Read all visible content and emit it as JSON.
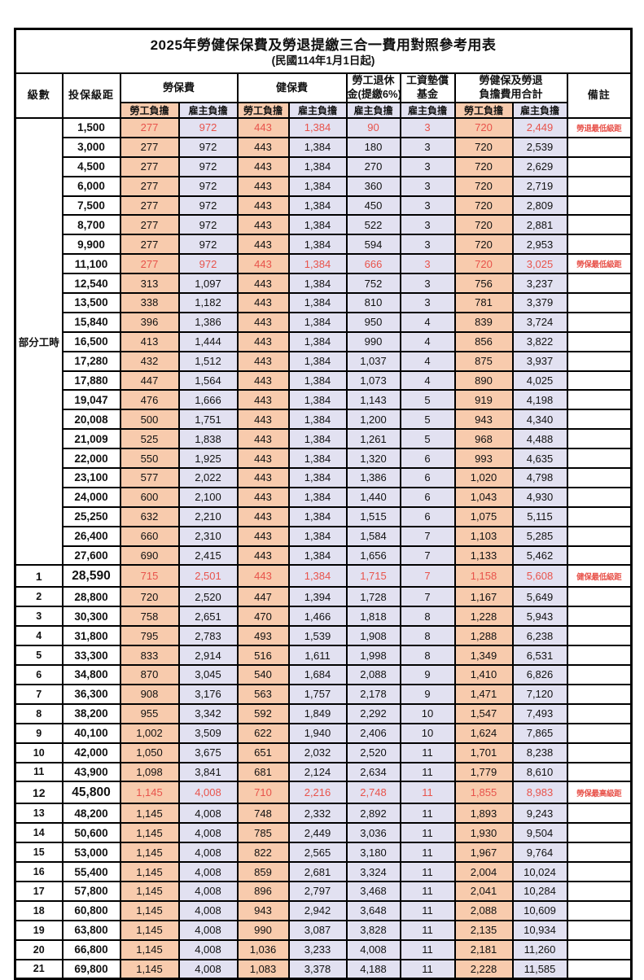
{
  "title": "2025年勞健保保費及勞退提繳三合一費用對照參考用表",
  "subtitle": "(民國114年1月1日起)",
  "colors": {
    "employee_bg": "#F8CBAD",
    "employer_bg": "#E2E1F1",
    "red": "#E8534B"
  },
  "header": {
    "level": "級數",
    "bracket": "投保級距",
    "labor_group": "勞保費",
    "health_group": "健保費",
    "pension_line1": "勞工退休",
    "pension_line2": "金(提繳6%)",
    "fund_line1": "工資墊償",
    "fund_line2": "基金",
    "total_line1": "勞健保及勞退",
    "total_line2": "負擔費用合計",
    "employee": "勞工負擔",
    "employer": "雇主負擔",
    "remark": "備註"
  },
  "part_time_label": "部分工時",
  "part_time_rowspan": 23,
  "rows": [
    {
      "level": "",
      "bracket": "1,500",
      "labor_emp": "277",
      "labor_er": "972",
      "health_emp": "443",
      "health_er": "1,384",
      "pension_er": "90",
      "fund_er": "3",
      "total_emp": "720",
      "total_er": "2,449",
      "remark": "勞退最低級距",
      "red": true,
      "emph": false
    },
    {
      "level": "",
      "bracket": "3,000",
      "labor_emp": "277",
      "labor_er": "972",
      "health_emp": "443",
      "health_er": "1,384",
      "pension_er": "180",
      "fund_er": "3",
      "total_emp": "720",
      "total_er": "2,539",
      "remark": "",
      "red": false,
      "emph": false
    },
    {
      "level": "",
      "bracket": "4,500",
      "labor_emp": "277",
      "labor_er": "972",
      "health_emp": "443",
      "health_er": "1,384",
      "pension_er": "270",
      "fund_er": "3",
      "total_emp": "720",
      "total_er": "2,629",
      "remark": "",
      "red": false,
      "emph": false
    },
    {
      "level": "",
      "bracket": "6,000",
      "labor_emp": "277",
      "labor_er": "972",
      "health_emp": "443",
      "health_er": "1,384",
      "pension_er": "360",
      "fund_er": "3",
      "total_emp": "720",
      "total_er": "2,719",
      "remark": "",
      "red": false,
      "emph": false
    },
    {
      "level": "",
      "bracket": "7,500",
      "labor_emp": "277",
      "labor_er": "972",
      "health_emp": "443",
      "health_er": "1,384",
      "pension_er": "450",
      "fund_er": "3",
      "total_emp": "720",
      "total_er": "2,809",
      "remark": "",
      "red": false,
      "emph": false
    },
    {
      "level": "",
      "bracket": "8,700",
      "labor_emp": "277",
      "labor_er": "972",
      "health_emp": "443",
      "health_er": "1,384",
      "pension_er": "522",
      "fund_er": "3",
      "total_emp": "720",
      "total_er": "2,881",
      "remark": "",
      "red": false,
      "emph": false
    },
    {
      "level": "",
      "bracket": "9,900",
      "labor_emp": "277",
      "labor_er": "972",
      "health_emp": "443",
      "health_er": "1,384",
      "pension_er": "594",
      "fund_er": "3",
      "total_emp": "720",
      "total_er": "2,953",
      "remark": "",
      "red": false,
      "emph": false
    },
    {
      "level": "",
      "bracket": "11,100",
      "labor_emp": "277",
      "labor_er": "972",
      "health_emp": "443",
      "health_er": "1,384",
      "pension_er": "666",
      "fund_er": "3",
      "total_emp": "720",
      "total_er": "3,025",
      "remark": "勞保最低級距",
      "red": true,
      "emph": false
    },
    {
      "level": "",
      "bracket": "12,540",
      "labor_emp": "313",
      "labor_er": "1,097",
      "health_emp": "443",
      "health_er": "1,384",
      "pension_er": "752",
      "fund_er": "3",
      "total_emp": "756",
      "total_er": "3,237",
      "remark": "",
      "red": false,
      "emph": false
    },
    {
      "level": "",
      "bracket": "13,500",
      "labor_emp": "338",
      "labor_er": "1,182",
      "health_emp": "443",
      "health_er": "1,384",
      "pension_er": "810",
      "fund_er": "3",
      "total_emp": "781",
      "total_er": "3,379",
      "remark": "",
      "red": false,
      "emph": false
    },
    {
      "level": "",
      "bracket": "15,840",
      "labor_emp": "396",
      "labor_er": "1,386",
      "health_emp": "443",
      "health_er": "1,384",
      "pension_er": "950",
      "fund_er": "4",
      "total_emp": "839",
      "total_er": "3,724",
      "remark": "",
      "red": false,
      "emph": false
    },
    {
      "level": "",
      "bracket": "16,500",
      "labor_emp": "413",
      "labor_er": "1,444",
      "health_emp": "443",
      "health_er": "1,384",
      "pension_er": "990",
      "fund_er": "4",
      "total_emp": "856",
      "total_er": "3,822",
      "remark": "",
      "red": false,
      "emph": false
    },
    {
      "level": "",
      "bracket": "17,280",
      "labor_emp": "432",
      "labor_er": "1,512",
      "health_emp": "443",
      "health_er": "1,384",
      "pension_er": "1,037",
      "fund_er": "4",
      "total_emp": "875",
      "total_er": "3,937",
      "remark": "",
      "red": false,
      "emph": false
    },
    {
      "level": "",
      "bracket": "17,880",
      "labor_emp": "447",
      "labor_er": "1,564",
      "health_emp": "443",
      "health_er": "1,384",
      "pension_er": "1,073",
      "fund_er": "4",
      "total_emp": "890",
      "total_er": "4,025",
      "remark": "",
      "red": false,
      "emph": false
    },
    {
      "level": "",
      "bracket": "19,047",
      "labor_emp": "476",
      "labor_er": "1,666",
      "health_emp": "443",
      "health_er": "1,384",
      "pension_er": "1,143",
      "fund_er": "5",
      "total_emp": "919",
      "total_er": "4,198",
      "remark": "",
      "red": false,
      "emph": false
    },
    {
      "level": "",
      "bracket": "20,008",
      "labor_emp": "500",
      "labor_er": "1,751",
      "health_emp": "443",
      "health_er": "1,384",
      "pension_er": "1,200",
      "fund_er": "5",
      "total_emp": "943",
      "total_er": "4,340",
      "remark": "",
      "red": false,
      "emph": false
    },
    {
      "level": "",
      "bracket": "21,009",
      "labor_emp": "525",
      "labor_er": "1,838",
      "health_emp": "443",
      "health_er": "1,384",
      "pension_er": "1,261",
      "fund_er": "5",
      "total_emp": "968",
      "total_er": "4,488",
      "remark": "",
      "red": false,
      "emph": false
    },
    {
      "level": "",
      "bracket": "22,000",
      "labor_emp": "550",
      "labor_er": "1,925",
      "health_emp": "443",
      "health_er": "1,384",
      "pension_er": "1,320",
      "fund_er": "6",
      "total_emp": "993",
      "total_er": "4,635",
      "remark": "",
      "red": false,
      "emph": false
    },
    {
      "level": "",
      "bracket": "23,100",
      "labor_emp": "577",
      "labor_er": "2,022",
      "health_emp": "443",
      "health_er": "1,384",
      "pension_er": "1,386",
      "fund_er": "6",
      "total_emp": "1,020",
      "total_er": "4,798",
      "remark": "",
      "red": false,
      "emph": false
    },
    {
      "level": "",
      "bracket": "24,000",
      "labor_emp": "600",
      "labor_er": "2,100",
      "health_emp": "443",
      "health_er": "1,384",
      "pension_er": "1,440",
      "fund_er": "6",
      "total_emp": "1,043",
      "total_er": "4,930",
      "remark": "",
      "red": false,
      "emph": false
    },
    {
      "level": "",
      "bracket": "25,250",
      "labor_emp": "632",
      "labor_er": "2,210",
      "health_emp": "443",
      "health_er": "1,384",
      "pension_er": "1,515",
      "fund_er": "6",
      "total_emp": "1,075",
      "total_er": "5,115",
      "remark": "",
      "red": false,
      "emph": false
    },
    {
      "level": "",
      "bracket": "26,400",
      "labor_emp": "660",
      "labor_er": "2,310",
      "health_emp": "443",
      "health_er": "1,384",
      "pension_er": "1,584",
      "fund_er": "7",
      "total_emp": "1,103",
      "total_er": "5,285",
      "remark": "",
      "red": false,
      "emph": false
    },
    {
      "level": "",
      "bracket": "27,600",
      "labor_emp": "690",
      "labor_er": "2,415",
      "health_emp": "443",
      "health_er": "1,384",
      "pension_er": "1,656",
      "fund_er": "7",
      "total_emp": "1,133",
      "total_er": "5,462",
      "remark": "",
      "red": false,
      "emph": false
    },
    {
      "level": "1",
      "bracket": "28,590",
      "labor_emp": "715",
      "labor_er": "2,501",
      "health_emp": "443",
      "health_er": "1,384",
      "pension_er": "1,715",
      "fund_er": "7",
      "total_emp": "1,158",
      "total_er": "5,608",
      "remark": "健保最低級距",
      "red": true,
      "emph": true
    },
    {
      "level": "2",
      "bracket": "28,800",
      "labor_emp": "720",
      "labor_er": "2,520",
      "health_emp": "447",
      "health_er": "1,394",
      "pension_er": "1,728",
      "fund_er": "7",
      "total_emp": "1,167",
      "total_er": "5,649",
      "remark": "",
      "red": false,
      "emph": false
    },
    {
      "level": "3",
      "bracket": "30,300",
      "labor_emp": "758",
      "labor_er": "2,651",
      "health_emp": "470",
      "health_er": "1,466",
      "pension_er": "1,818",
      "fund_er": "8",
      "total_emp": "1,228",
      "total_er": "5,943",
      "remark": "",
      "red": false,
      "emph": false
    },
    {
      "level": "4",
      "bracket": "31,800",
      "labor_emp": "795",
      "labor_er": "2,783",
      "health_emp": "493",
      "health_er": "1,539",
      "pension_er": "1,908",
      "fund_er": "8",
      "total_emp": "1,288",
      "total_er": "6,238",
      "remark": "",
      "red": false,
      "emph": false
    },
    {
      "level": "5",
      "bracket": "33,300",
      "labor_emp": "833",
      "labor_er": "2,914",
      "health_emp": "516",
      "health_er": "1,611",
      "pension_er": "1,998",
      "fund_er": "8",
      "total_emp": "1,349",
      "total_er": "6,531",
      "remark": "",
      "red": false,
      "emph": false
    },
    {
      "level": "6",
      "bracket": "34,800",
      "labor_emp": "870",
      "labor_er": "3,045",
      "health_emp": "540",
      "health_er": "1,684",
      "pension_er": "2,088",
      "fund_er": "9",
      "total_emp": "1,410",
      "total_er": "6,826",
      "remark": "",
      "red": false,
      "emph": false
    },
    {
      "level": "7",
      "bracket": "36,300",
      "labor_emp": "908",
      "labor_er": "3,176",
      "health_emp": "563",
      "health_er": "1,757",
      "pension_er": "2,178",
      "fund_er": "9",
      "total_emp": "1,471",
      "total_er": "7,120",
      "remark": "",
      "red": false,
      "emph": false
    },
    {
      "level": "8",
      "bracket": "38,200",
      "labor_emp": "955",
      "labor_er": "3,342",
      "health_emp": "592",
      "health_er": "1,849",
      "pension_er": "2,292",
      "fund_er": "10",
      "total_emp": "1,547",
      "total_er": "7,493",
      "remark": "",
      "red": false,
      "emph": false
    },
    {
      "level": "9",
      "bracket": "40,100",
      "labor_emp": "1,002",
      "labor_er": "3,509",
      "health_emp": "622",
      "health_er": "1,940",
      "pension_er": "2,406",
      "fund_er": "10",
      "total_emp": "1,624",
      "total_er": "7,865",
      "remark": "",
      "red": false,
      "emph": false
    },
    {
      "level": "10",
      "bracket": "42,000",
      "labor_emp": "1,050",
      "labor_er": "3,675",
      "health_emp": "651",
      "health_er": "2,032",
      "pension_er": "2,520",
      "fund_er": "11",
      "total_emp": "1,701",
      "total_er": "8,238",
      "remark": "",
      "red": false,
      "emph": false
    },
    {
      "level": "11",
      "bracket": "43,900",
      "labor_emp": "1,098",
      "labor_er": "3,841",
      "health_emp": "681",
      "health_er": "2,124",
      "pension_er": "2,634",
      "fund_er": "11",
      "total_emp": "1,779",
      "total_er": "8,610",
      "remark": "",
      "red": false,
      "emph": false
    },
    {
      "level": "12",
      "bracket": "45,800",
      "labor_emp": "1,145",
      "labor_er": "4,008",
      "health_emp": "710",
      "health_er": "2,216",
      "pension_er": "2,748",
      "fund_er": "11",
      "total_emp": "1,855",
      "total_er": "8,983",
      "remark": "勞保最高級距",
      "red": true,
      "emph": true
    },
    {
      "level": "13",
      "bracket": "48,200",
      "labor_emp": "1,145",
      "labor_er": "4,008",
      "health_emp": "748",
      "health_er": "2,332",
      "pension_er": "2,892",
      "fund_er": "11",
      "total_emp": "1,893",
      "total_er": "9,243",
      "remark": "",
      "red": false,
      "emph": false
    },
    {
      "level": "14",
      "bracket": "50,600",
      "labor_emp": "1,145",
      "labor_er": "4,008",
      "health_emp": "785",
      "health_er": "2,449",
      "pension_er": "3,036",
      "fund_er": "11",
      "total_emp": "1,930",
      "total_er": "9,504",
      "remark": "",
      "red": false,
      "emph": false
    },
    {
      "level": "15",
      "bracket": "53,000",
      "labor_emp": "1,145",
      "labor_er": "4,008",
      "health_emp": "822",
      "health_er": "2,565",
      "pension_er": "3,180",
      "fund_er": "11",
      "total_emp": "1,967",
      "total_er": "9,764",
      "remark": "",
      "red": false,
      "emph": false
    },
    {
      "level": "16",
      "bracket": "55,400",
      "labor_emp": "1,145",
      "labor_er": "4,008",
      "health_emp": "859",
      "health_er": "2,681",
      "pension_er": "3,324",
      "fund_er": "11",
      "total_emp": "2,004",
      "total_er": "10,024",
      "remark": "",
      "red": false,
      "emph": false
    },
    {
      "level": "17",
      "bracket": "57,800",
      "labor_emp": "1,145",
      "labor_er": "4,008",
      "health_emp": "896",
      "health_er": "2,797",
      "pension_er": "3,468",
      "fund_er": "11",
      "total_emp": "2,041",
      "total_er": "10,284",
      "remark": "",
      "red": false,
      "emph": false
    },
    {
      "level": "18",
      "bracket": "60,800",
      "labor_emp": "1,145",
      "labor_er": "4,008",
      "health_emp": "943",
      "health_er": "2,942",
      "pension_er": "3,648",
      "fund_er": "11",
      "total_emp": "2,088",
      "total_er": "10,609",
      "remark": "",
      "red": false,
      "emph": false
    },
    {
      "level": "19",
      "bracket": "63,800",
      "labor_emp": "1,145",
      "labor_er": "4,008",
      "health_emp": "990",
      "health_er": "3,087",
      "pension_er": "3,828",
      "fund_er": "11",
      "total_emp": "2,135",
      "total_er": "10,934",
      "remark": "",
      "red": false,
      "emph": false
    },
    {
      "level": "20",
      "bracket": "66,800",
      "labor_emp": "1,145",
      "labor_er": "4,008",
      "health_emp": "1,036",
      "health_er": "3,233",
      "pension_er": "4,008",
      "fund_er": "11",
      "total_emp": "2,181",
      "total_er": "11,260",
      "remark": "",
      "red": false,
      "emph": false
    },
    {
      "level": "21",
      "bracket": "69,800",
      "labor_emp": "1,145",
      "labor_er": "4,008",
      "health_emp": "1,083",
      "health_er": "3,378",
      "pension_er": "4,188",
      "fund_er": "11",
      "total_emp": "2,228",
      "total_er": "11,585",
      "remark": "",
      "red": false,
      "emph": false
    }
  ]
}
